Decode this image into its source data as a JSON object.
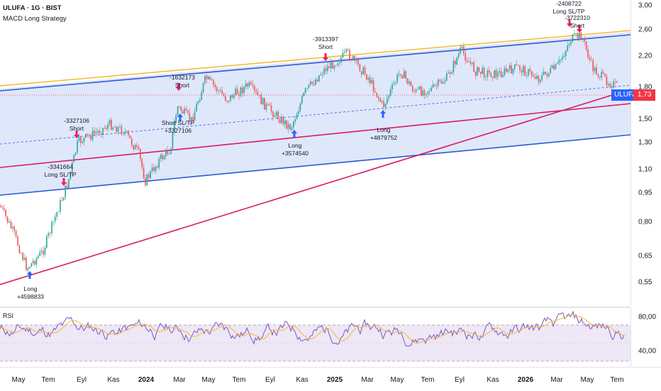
{
  "header": {
    "symbol_line": "ULUFA · 1G · BIST",
    "strategy_name": "MACD Long Strategy"
  },
  "price_axis": [
    "3,00",
    "2,60",
    "2,20",
    "1,80",
    "1,50",
    "1,30",
    "1,10",
    "0,95",
    "0,80",
    "0,65",
    "0,55"
  ],
  "rsi_axis": [
    "80,00",
    "40,00"
  ],
  "rsi_label": "RSI",
  "time_axis": [
    {
      "label": "May",
      "bold": false
    },
    {
      "label": "Tem",
      "bold": false
    },
    {
      "label": "Eyl",
      "bold": false
    },
    {
      "label": "Kas",
      "bold": false
    },
    {
      "label": "2024",
      "bold": true
    },
    {
      "label": "Mar",
      "bold": false
    },
    {
      "label": "May",
      "bold": false
    },
    {
      "label": "Tem",
      "bold": false
    },
    {
      "label": "Eyl",
      "bold": false
    },
    {
      "label": "Kas",
      "bold": false
    },
    {
      "label": "2025",
      "bold": true
    },
    {
      "label": "Mar",
      "bold": false
    },
    {
      "label": "May",
      "bold": false
    },
    {
      "label": "Tem",
      "bold": false
    },
    {
      "label": "Eyl",
      "bold": false
    },
    {
      "label": "Kas",
      "bold": false
    },
    {
      "label": "2026",
      "bold": true
    },
    {
      "label": "Mar",
      "bold": false
    },
    {
      "label": "May",
      "bold": false
    },
    {
      "label": "Tem",
      "bold": false
    }
  ],
  "last_price": {
    "name": "ULUFA",
    "value": "1,73"
  },
  "annotations": [
    {
      "lines": [
        "Long",
        "+4598833"
      ]
    },
    {
      "lines": [
        "-3341664",
        "Long  SL/TP"
      ]
    },
    {
      "lines": [
        "-3327106",
        "Short"
      ]
    },
    {
      "lines": [
        "-1632173",
        "Short"
      ]
    },
    {
      "lines": [
        "Short  SL/TP",
        "+3327106"
      ]
    },
    {
      "lines": [
        "Long",
        "+3574540"
      ]
    },
    {
      "lines": [
        "-3913397",
        "Short"
      ]
    },
    {
      "lines": [
        "Long",
        "+4879752"
      ]
    },
    {
      "lines": [
        "-2408722",
        "Long  SL/TP"
      ]
    },
    {
      "lines": [
        "-3722310",
        "Short"
      ]
    }
  ],
  "colors": {
    "channel_fill": "#dbe4fb",
    "channel_line": "#2a5bd7",
    "top_line": "#f5b82e",
    "trend_line": "#d81b60",
    "candle_up": "#26a69a",
    "candle_down": "#ef5350",
    "rsi_line": "#7e57c2",
    "rsi_ma": "#f5b82e",
    "rsi_band": "#ede7f6",
    "last_price_bg": "#2962ff",
    "last_value_bg": "#f23645"
  },
  "chart_data": {
    "type": "candlestick",
    "title": "ULUFA · 1G · BIST",
    "ylim": [
      0.5,
      3.0
    ],
    "series": [
      {
        "name": "ULUFA",
        "x": [
          "May",
          "Tem",
          "Eyl",
          "Kas",
          "2024",
          "Mar",
          "May",
          "Tem",
          "Eyl",
          "Kas",
          "2025",
          "Mar",
          "May",
          "Tem",
          "Eyl",
          "Kas",
          "2026",
          "Mar",
          "May",
          "Tem"
        ],
        "values": [
          0.68,
          0.62,
          1.15,
          1.25,
          1.02,
          1.45,
          1.75,
          1.6,
          1.62,
          1.42,
          2.05,
          1.58,
          1.72,
          1.82,
          2.1,
          1.82,
          1.92,
          2.1,
          1.82,
          1.73
        ]
      }
    ],
    "rsi": {
      "ylim": [
        20,
        90
      ]
    }
  }
}
